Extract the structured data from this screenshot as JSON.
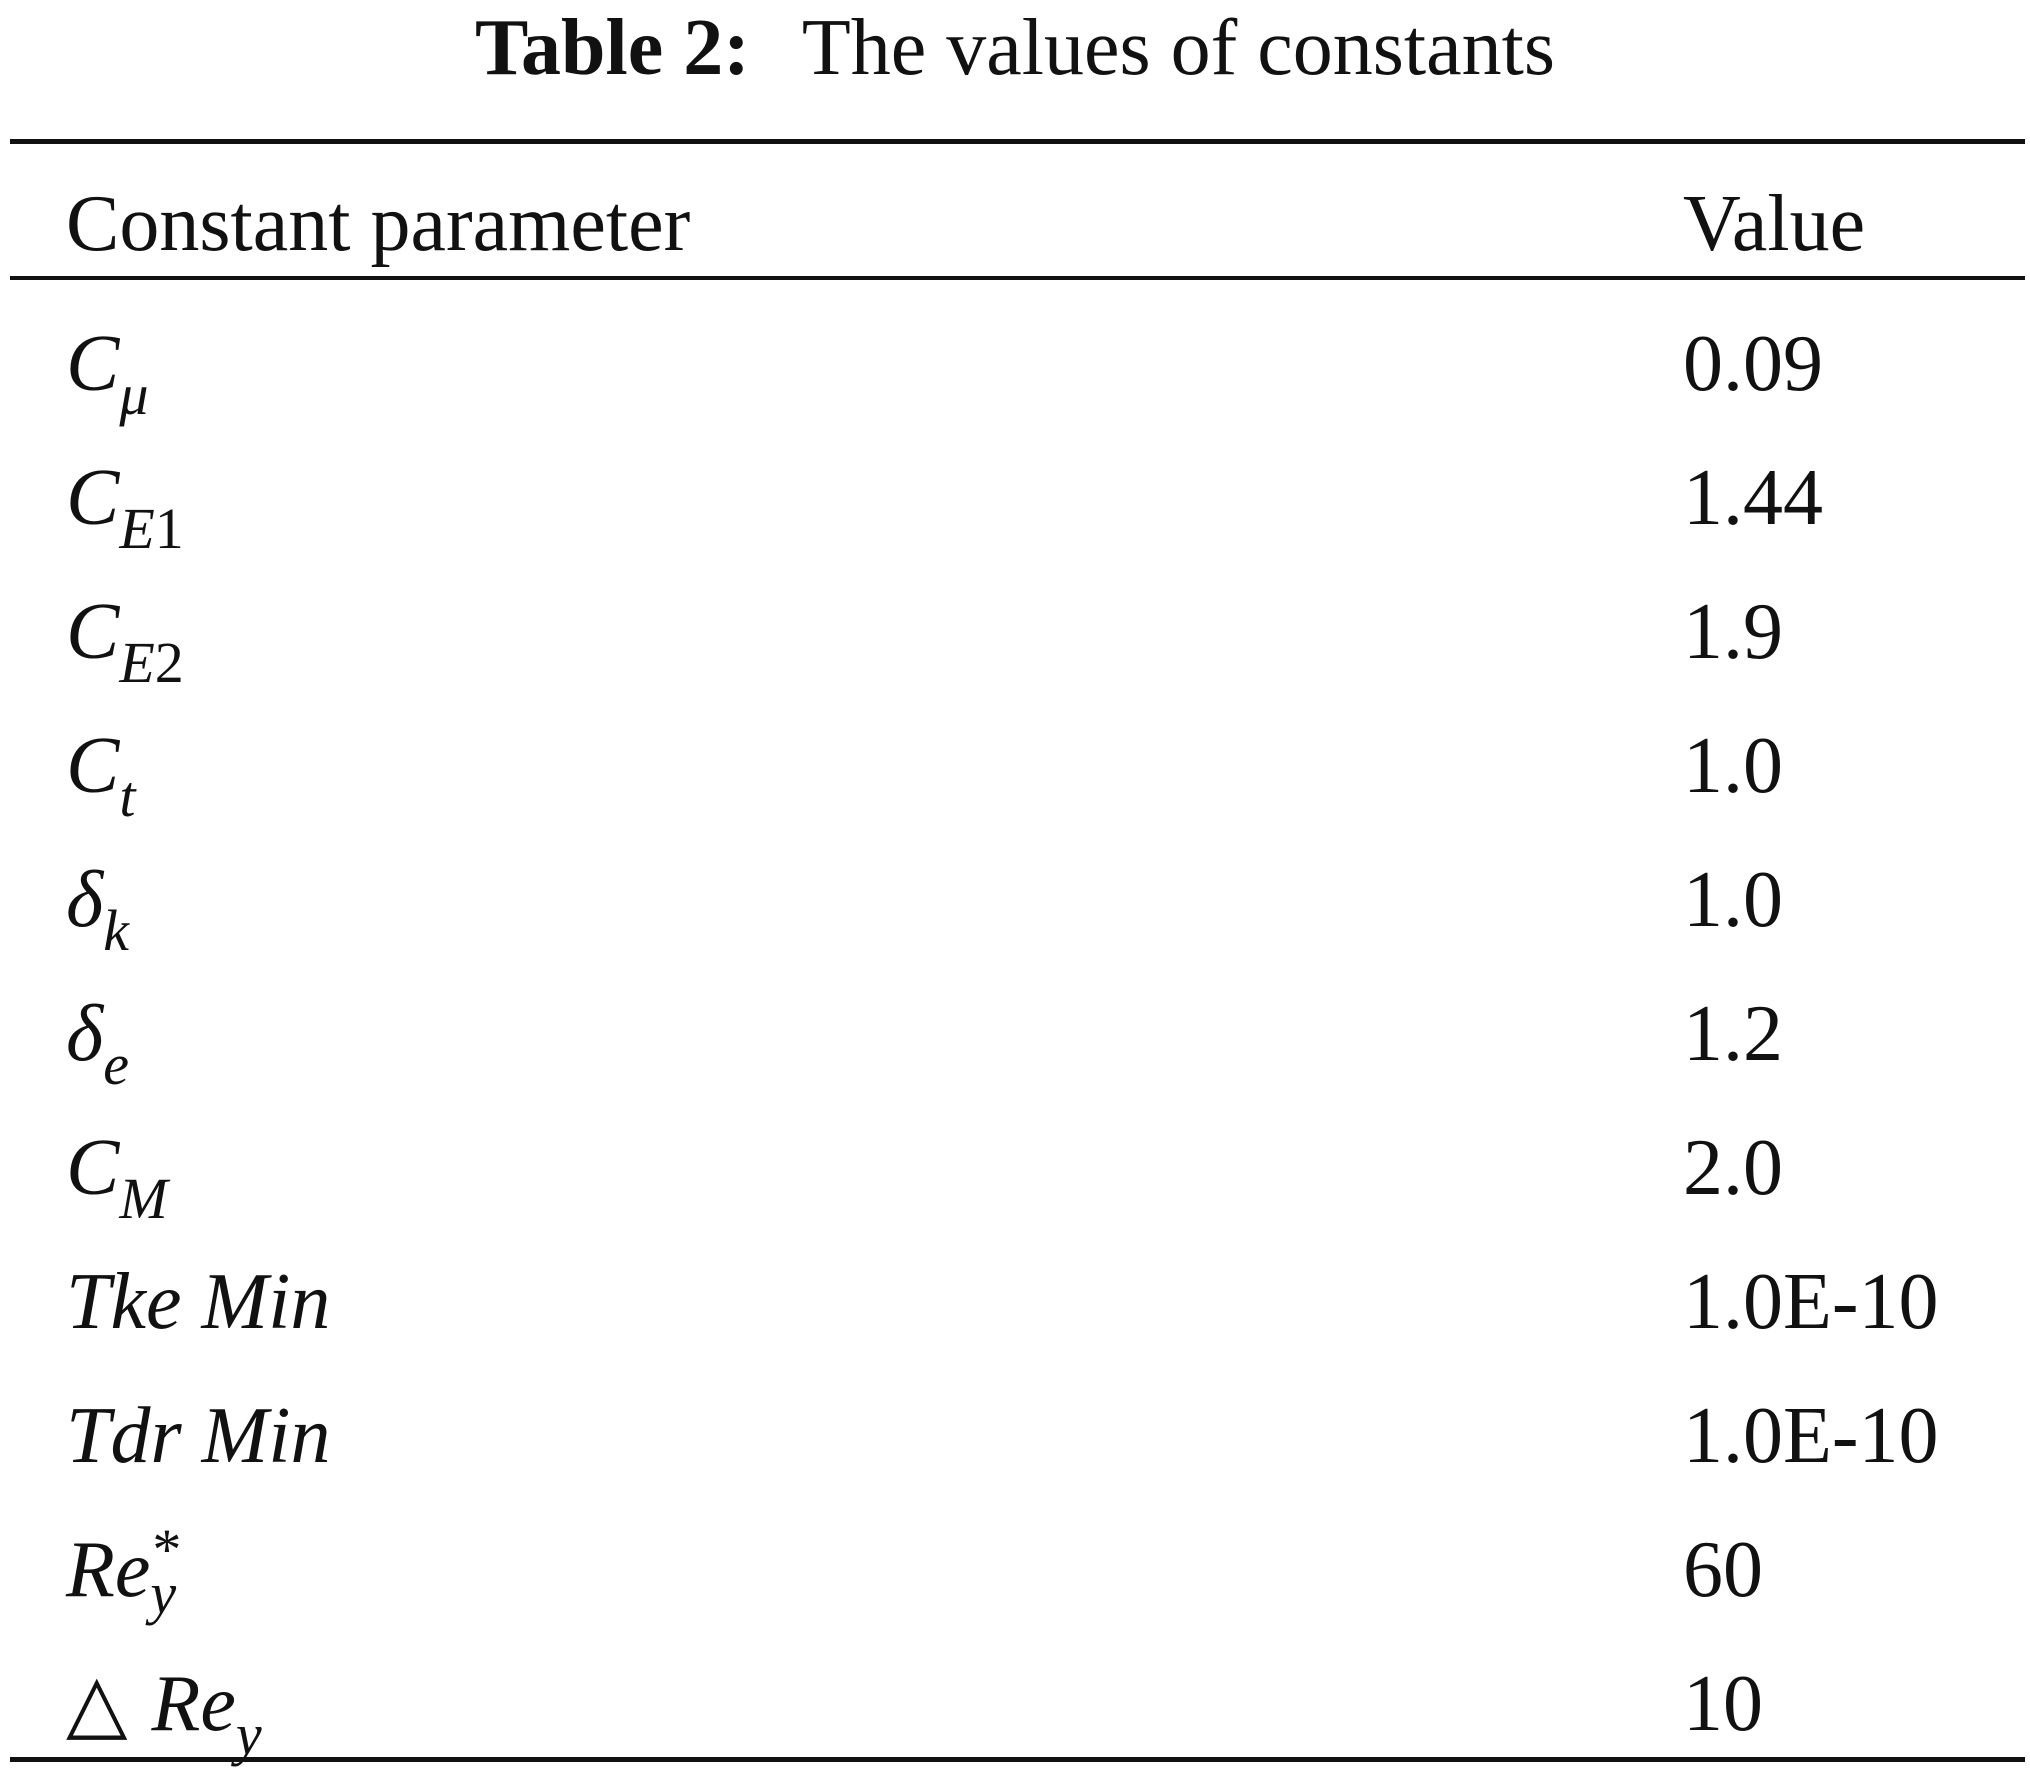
{
  "caption": {
    "label": "Table 2:",
    "text": "The values of constants"
  },
  "table": {
    "headers": {
      "parameter": "Constant parameter",
      "value": "Value"
    },
    "rows": [
      {
        "base": "C",
        "sub": "μ",
        "value": "0.09"
      },
      {
        "base": "C",
        "sub": "E",
        "sub_num": "1",
        "value": "1.44"
      },
      {
        "base": "C",
        "sub": "E",
        "sub_num": "2",
        "value": "1.9"
      },
      {
        "base": "C",
        "sub": "t",
        "value": "1.0"
      },
      {
        "base": "δ",
        "sub": "k",
        "value": "1.0"
      },
      {
        "base": "δ",
        "sub": "e",
        "value": "1.2"
      },
      {
        "base": "C",
        "sub": "M",
        "value": "2.0"
      },
      {
        "text": "Tke Min",
        "value": "1.0E-10"
      },
      {
        "text": "Tdr Min",
        "value": "1.0E-10"
      },
      {
        "base": "Re",
        "sup": "*",
        "sub": "y",
        "value": "60"
      },
      {
        "prefix": "△",
        "base": "Re",
        "sub": "y",
        "value": "10"
      }
    ]
  }
}
